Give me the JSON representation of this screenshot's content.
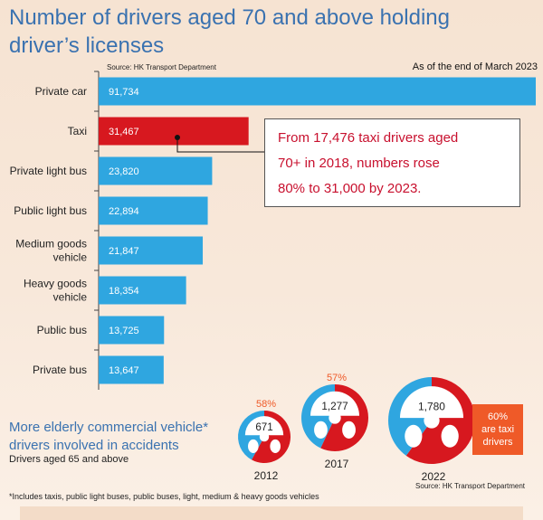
{
  "title": "Number of drivers aged 70 and above holding driver’s licenses",
  "source_top": "Source: HK Transport Department",
  "as_of": "As of the end of March 2023",
  "callout": {
    "line1": "From 17,476 taxi drivers aged",
    "line2": "70+ in 2018, numbers rose",
    "line3": "80% to 31,000 by 2023."
  },
  "section2": {
    "title": "More elderly commercial vehicle* drivers involved in accidents",
    "subtitle": "Drivers aged 65 and above",
    "box_line1": "60%",
    "box_line2": "are taxi",
    "box_line3": "drivers"
  },
  "footnote": "*Includes taxis, public light buses, public buses, light, medium & heavy goods vehicles",
  "source_bottom": "Source: HK Transport Department",
  "colors": {
    "bar": "#2fa6e0",
    "taxi": "#d7181f",
    "title": "#3a72b0",
    "accent": "#ef5a28"
  },
  "chart_data": [
    {
      "type": "bar",
      "orientation": "horizontal",
      "title": "Number of drivers aged 70 and above holding driver’s licenses",
      "categories": [
        "Private car",
        "Taxi",
        "Private light bus",
        "Public light bus",
        "Medium goods vehicle",
        "Heavy goods vehicle",
        "Public bus",
        "Private bus"
      ],
      "category_lines": [
        [
          "Private car"
        ],
        [
          "Taxi"
        ],
        [
          "Private light bus"
        ],
        [
          "Public light bus"
        ],
        [
          "Medium goods",
          "vehicle"
        ],
        [
          "Heavy goods",
          "vehicle"
        ],
        [
          "Public bus"
        ],
        [
          "Private bus"
        ]
      ],
      "values": [
        91734,
        31467,
        23820,
        22894,
        21847,
        18354,
        13725,
        13647
      ],
      "value_labels": [
        "91,734",
        "31,467",
        "23,820",
        "22,894",
        "21,847",
        "18,354",
        "13,725",
        "13,647"
      ],
      "highlight": "Taxi",
      "grid": false
    },
    {
      "type": "pie",
      "title": "More elderly commercial vehicle* drivers involved in accidents",
      "subtitle": "Drivers aged 65 and above",
      "items": [
        {
          "year": "2012",
          "total": 671,
          "total_label": "671",
          "taxi_share_pct": 58,
          "pct_label": "58%"
        },
        {
          "year": "2017",
          "total": 1277,
          "total_label": "1,277",
          "taxi_share_pct": 57,
          "pct_label": "57%"
        },
        {
          "year": "2022",
          "total": 1780,
          "total_label": "1,780",
          "taxi_share_pct": 60,
          "pct_label": "60%"
        }
      ]
    }
  ]
}
